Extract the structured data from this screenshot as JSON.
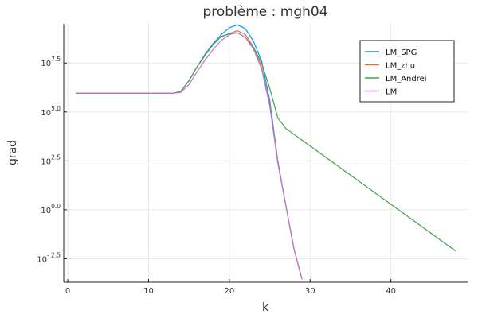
{
  "chart_data": {
    "type": "line",
    "title": "problème : mgh04",
    "xlabel": "k",
    "ylabel": "grad",
    "xlim": [
      -0.5,
      49.5
    ],
    "ylim": [
      -3.7,
      9.5
    ],
    "y_scale": "log10",
    "x_ticks": [
      {
        "value": 0,
        "label": "0"
      },
      {
        "value": 10,
        "label": "10"
      },
      {
        "value": 20,
        "label": "20"
      },
      {
        "value": 30,
        "label": "30"
      },
      {
        "value": 40,
        "label": "40"
      }
    ],
    "y_ticks": [
      {
        "value": -2.5,
        "base": "10",
        "exp": "- 2.5"
      },
      {
        "value": 0,
        "base": "10",
        "exp": "0.0"
      },
      {
        "value": 2.5,
        "base": "10",
        "exp": "2.5"
      },
      {
        "value": 5,
        "base": "10",
        "exp": "5.0"
      },
      {
        "value": 7.5,
        "base": "10",
        "exp": "7.5"
      }
    ],
    "grid": true,
    "legend_position": "top-right",
    "series": [
      {
        "name": "LM_SPG",
        "color": "#009AFA",
        "points": [
          [
            1,
            5.95
          ],
          [
            2,
            5.95
          ],
          [
            3,
            5.95
          ],
          [
            4,
            5.95
          ],
          [
            5,
            5.95
          ],
          [
            6,
            5.95
          ],
          [
            7,
            5.95
          ],
          [
            8,
            5.95
          ],
          [
            9,
            5.95
          ],
          [
            10,
            5.95
          ],
          [
            11,
            5.95
          ],
          [
            12,
            5.95
          ],
          [
            13,
            5.95
          ],
          [
            14,
            6.05
          ],
          [
            15,
            6.6
          ],
          [
            16,
            7.3
          ],
          [
            17,
            7.95
          ],
          [
            18,
            8.5
          ],
          [
            19,
            8.95
          ],
          [
            20,
            9.3
          ],
          [
            21,
            9.45
          ],
          [
            22,
            9.25
          ],
          [
            23,
            8.6
          ],
          [
            24,
            7.6
          ],
          [
            25,
            5.6
          ],
          [
            26,
            2.5
          ],
          [
            27,
            0.2
          ],
          [
            28,
            -2.0
          ],
          [
            29,
            -3.55
          ]
        ]
      },
      {
        "name": "LM_zhu",
        "color": "#E36F47",
        "points": [
          [
            1,
            5.95
          ],
          [
            2,
            5.95
          ],
          [
            3,
            5.95
          ],
          [
            4,
            5.95
          ],
          [
            5,
            5.95
          ],
          [
            6,
            5.95
          ],
          [
            7,
            5.95
          ],
          [
            8,
            5.95
          ],
          [
            9,
            5.95
          ],
          [
            10,
            5.95
          ],
          [
            11,
            5.95
          ],
          [
            12,
            5.95
          ],
          [
            13,
            5.95
          ],
          [
            14,
            6.05
          ],
          [
            15,
            6.6
          ],
          [
            16,
            7.3
          ],
          [
            17,
            7.9
          ],
          [
            18,
            8.45
          ],
          [
            19,
            8.85
          ],
          [
            20,
            9.0
          ],
          [
            21,
            9.15
          ],
          [
            22,
            8.95
          ],
          [
            23,
            8.3
          ],
          [
            24,
            7.3
          ],
          [
            25,
            5.4
          ],
          [
            26,
            2.4
          ],
          [
            27,
            0.2
          ],
          [
            28,
            -2.0
          ],
          [
            29,
            -3.55
          ]
        ]
      },
      {
        "name": "LM_Andrei",
        "color": "#3EA44E",
        "points": [
          [
            1,
            5.95
          ],
          [
            2,
            5.95
          ],
          [
            3,
            5.95
          ],
          [
            4,
            5.95
          ],
          [
            5,
            5.95
          ],
          [
            6,
            5.95
          ],
          [
            7,
            5.95
          ],
          [
            8,
            5.95
          ],
          [
            9,
            5.95
          ],
          [
            10,
            5.95
          ],
          [
            11,
            5.95
          ],
          [
            12,
            5.95
          ],
          [
            13,
            5.95
          ],
          [
            14,
            6.05
          ],
          [
            15,
            6.6
          ],
          [
            16,
            7.3
          ],
          [
            17,
            7.9
          ],
          [
            18,
            8.45
          ],
          [
            19,
            8.85
          ],
          [
            20,
            9.0
          ],
          [
            21,
            9.05
          ],
          [
            22,
            8.8
          ],
          [
            23,
            8.3
          ],
          [
            24,
            7.5
          ],
          [
            25,
            6.2
          ],
          [
            26,
            4.7
          ],
          [
            27,
            4.15
          ],
          [
            48,
            -2.1
          ]
        ]
      },
      {
        "name": "LM",
        "color": "#C271D2",
        "points": [
          [
            1,
            5.95
          ],
          [
            2,
            5.95
          ],
          [
            3,
            5.95
          ],
          [
            4,
            5.95
          ],
          [
            5,
            5.95
          ],
          [
            6,
            5.95
          ],
          [
            7,
            5.95
          ],
          [
            8,
            5.95
          ],
          [
            9,
            5.95
          ],
          [
            10,
            5.95
          ],
          [
            11,
            5.95
          ],
          [
            12,
            5.95
          ],
          [
            13,
            5.95
          ],
          [
            14,
            6.0
          ],
          [
            15,
            6.4
          ],
          [
            16,
            7.05
          ],
          [
            17,
            7.65
          ],
          [
            18,
            8.2
          ],
          [
            19,
            8.65
          ],
          [
            20,
            8.95
          ],
          [
            21,
            9.05
          ],
          [
            22,
            8.8
          ],
          [
            23,
            8.2
          ],
          [
            24,
            7.2
          ],
          [
            25,
            5.3
          ],
          [
            26,
            2.4
          ],
          [
            27,
            0.2
          ],
          [
            28,
            -2.0
          ],
          [
            29,
            -3.55
          ]
        ]
      }
    ]
  }
}
